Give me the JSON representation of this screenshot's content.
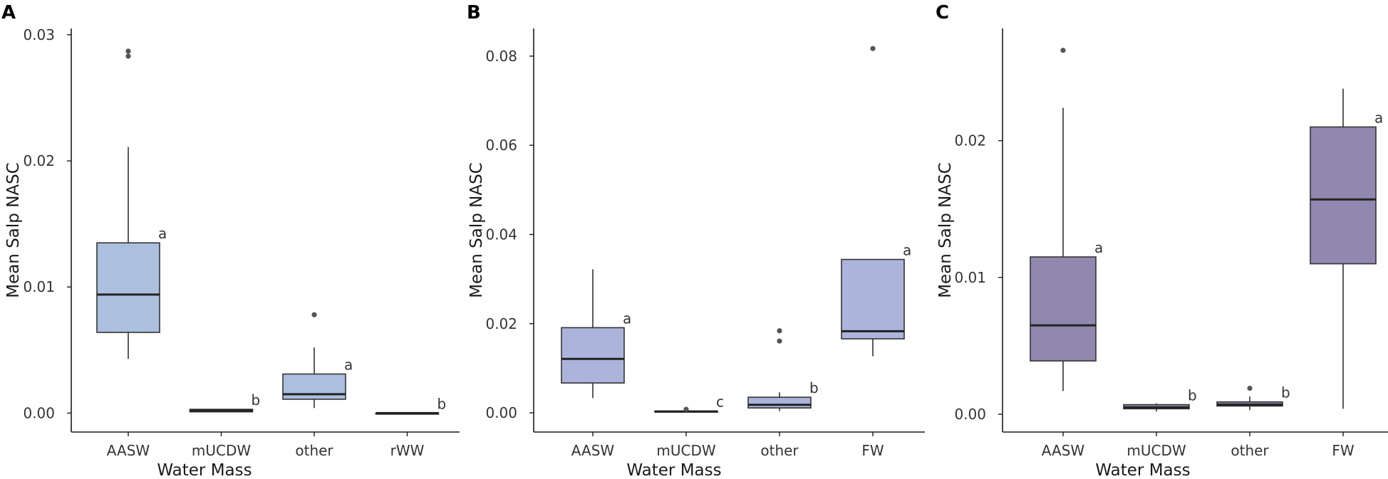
{
  "chart_data": [
    {
      "panel": "A",
      "type": "boxplot",
      "xlabel": "Water Mass",
      "ylabel": "Mean Salp NASC",
      "ylim": [
        -0.0015,
        0.0305
      ],
      "yticks": [
        0.0,
        0.01,
        0.02,
        0.03
      ],
      "ytick_labels": [
        "0.00",
        "0.01",
        "0.02",
        "0.03"
      ],
      "fill_color": "#abbfdf",
      "categories": [
        "AASW",
        "mUCDW",
        "other",
        "rWW"
      ],
      "boxes": [
        {
          "category": "AASW",
          "min": 0.0043,
          "q1": 0.0064,
          "median": 0.0094,
          "q3": 0.0135,
          "max": 0.0211,
          "outliers": [
            0.0287,
            0.0283
          ],
          "letter": "a"
        },
        {
          "category": "mUCDW",
          "min": 0.0001,
          "q1": 0.0001,
          "median": 0.0002,
          "q3": 0.0003,
          "max": 0.0003,
          "outliers": [],
          "letter": "b"
        },
        {
          "category": "other",
          "min": 0.0004,
          "q1": 0.0011,
          "median": 0.0015,
          "q3": 0.0031,
          "max": 0.0052,
          "outliers": [
            0.0078
          ],
          "letter": "a"
        },
        {
          "category": "rWW",
          "min": 0.0,
          "q1": 0.0,
          "median": 0.0,
          "q3": 0.0,
          "max": 0.0,
          "outliers": [],
          "letter": "b"
        }
      ]
    },
    {
      "panel": "B",
      "type": "boxplot",
      "xlabel": "Water Mass",
      "ylabel": "Mean Salp NASC",
      "ylim": [
        -0.0043,
        0.0862
      ],
      "yticks": [
        0.0,
        0.02,
        0.04,
        0.06,
        0.08
      ],
      "ytick_labels": [
        "0.00",
        "0.02",
        "0.04",
        "0.06",
        "0.08"
      ],
      "fill_color": "#adb4db",
      "categories": [
        "AASW",
        "mUCDW",
        "other",
        "FW"
      ],
      "boxes": [
        {
          "category": "AASW",
          "min": 0.0033,
          "q1": 0.0067,
          "median": 0.0121,
          "q3": 0.0191,
          "max": 0.0322,
          "outliers": [],
          "letter": "a"
        },
        {
          "category": "mUCDW",
          "min": 0.0002,
          "q1": 0.0002,
          "median": 0.0003,
          "q3": 0.0004,
          "max": 0.0004,
          "outliers": [
            0.0008
          ],
          "letter": "c"
        },
        {
          "category": "other",
          "min": 0.0004,
          "q1": 0.0011,
          "median": 0.0018,
          "q3": 0.0035,
          "max": 0.0046,
          "outliers": [
            0.0184,
            0.0161
          ],
          "letter": "b"
        },
        {
          "category": "FW",
          "min": 0.0127,
          "q1": 0.0166,
          "median": 0.0183,
          "q3": 0.0344,
          "max": 0.0344,
          "outliers": [
            0.0817
          ],
          "letter": "a"
        }
      ]
    },
    {
      "panel": "C",
      "type": "boxplot",
      "xlabel": "Water Mass",
      "ylabel": "Mean Salp NASC",
      "ylim": [
        -0.0013,
        0.0282
      ],
      "yticks": [
        0.0,
        0.01,
        0.02
      ],
      "ytick_labels": [
        "0.00",
        "0.01",
        "0.02"
      ],
      "fill_color": "#9188b0",
      "categories": [
        "AASW",
        "mUCDW",
        "other",
        "FW"
      ],
      "boxes": [
        {
          "category": "AASW",
          "min": 0.0017,
          "q1": 0.0039,
          "median": 0.0065,
          "q3": 0.0115,
          "max": 0.0224,
          "outliers": [
            0.0266
          ],
          "letter": "a"
        },
        {
          "category": "mUCDW",
          "min": 0.0002,
          "q1": 0.0004,
          "median": 0.0005,
          "q3": 0.0007,
          "max": 0.0008,
          "outliers": [],
          "letter": "b"
        },
        {
          "category": "other",
          "min": 0.0003,
          "q1": 0.0006,
          "median": 0.0007,
          "q3": 0.0009,
          "max": 0.0013,
          "outliers": [
            0.0019
          ],
          "letter": "b"
        },
        {
          "category": "FW",
          "min": 0.0004,
          "q1": 0.011,
          "median": 0.0157,
          "q3": 0.021,
          "max": 0.0238,
          "outliers": [],
          "letter": "a"
        }
      ]
    }
  ]
}
